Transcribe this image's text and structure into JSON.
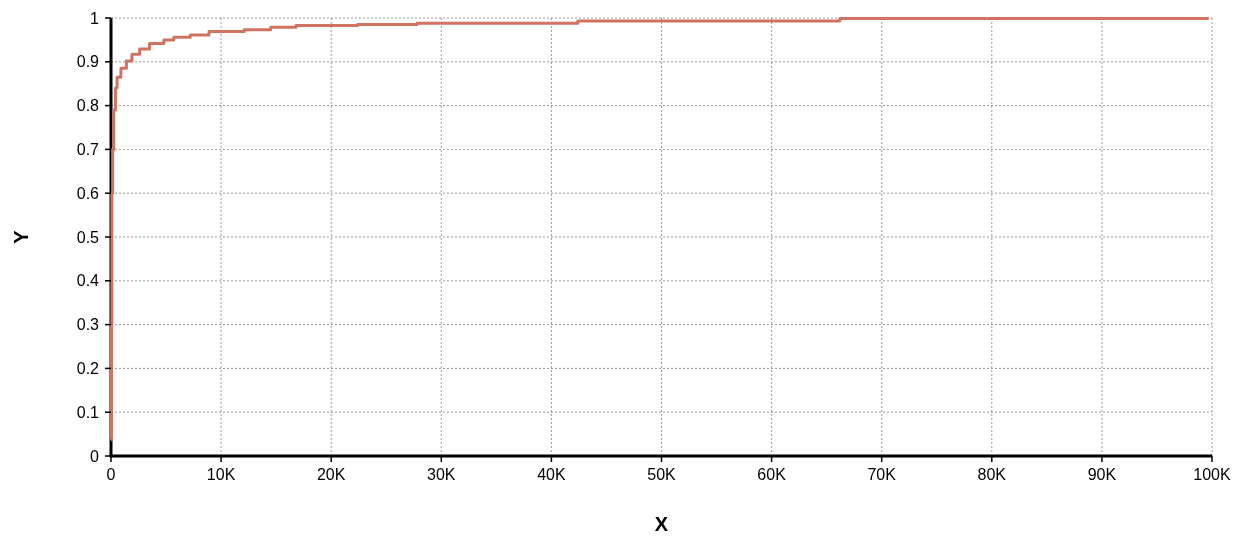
{
  "chart_data": {
    "type": "step",
    "xlabel": "X",
    "ylabel": "Y",
    "xlim": [
      0,
      100000
    ],
    "ylim": [
      0,
      1
    ],
    "xticks": [
      0,
      {
        "value": 10000,
        "label": "10K"
      },
      {
        "value": 20000,
        "label": "20K"
      },
      {
        "value": 30000,
        "label": "30K"
      },
      {
        "value": 40000,
        "label": "40K"
      },
      {
        "value": 50000,
        "label": "50K"
      },
      {
        "value": 60000,
        "label": "60K"
      },
      {
        "value": 70000,
        "label": "70K"
      },
      {
        "value": 80000,
        "label": "80K"
      },
      {
        "value": 90000,
        "label": "90K"
      },
      {
        "value": 100000,
        "label": "100K"
      }
    ],
    "yticks": [
      0,
      0.1,
      0.2,
      0.3,
      0.4,
      0.5,
      0.6,
      0.7,
      0.8,
      0.9,
      1
    ],
    "grid": true,
    "line_style": "solid",
    "series": [
      {
        "color": "#d07363",
        "x": [
          0,
          30,
          80,
          150,
          250,
          400,
          550,
          900,
          1400,
          1900,
          2600,
          3500,
          4800,
          5700,
          7200,
          8900,
          12100,
          14500,
          16800,
          22400,
          27800,
          42400,
          66200,
          99700
        ],
        "values": [
          0.037,
          0.3,
          0.6,
          0.7,
          0.79,
          0.84,
          0.865,
          0.885,
          0.902,
          0.917,
          0.929,
          0.942,
          0.95,
          0.956,
          0.961,
          0.969,
          0.973,
          0.979,
          0.983,
          0.985,
          0.988,
          0.993,
          0.999,
          0.999
        ]
      }
    ]
  }
}
